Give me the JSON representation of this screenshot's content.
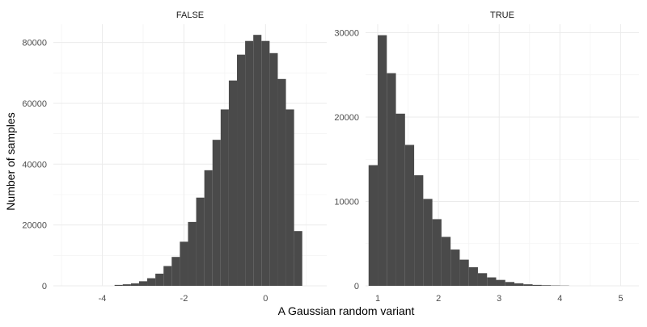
{
  "chart_data": {
    "type": "bar",
    "xlabel": "A Gaussian random variant",
    "ylabel": "Number of samples",
    "grid": true,
    "bar_color": "#4a4a4a",
    "grid_color": "#ebebeb",
    "panels": [
      {
        "strip_label": "FALSE",
        "xlim": [
          -5.2,
          1.5
        ],
        "ylim": [
          0,
          86000
        ],
        "x_ticks": [
          -4,
          -2,
          0
        ],
        "x_tick_labels": [
          "-4",
          "-2",
          "0"
        ],
        "y_ticks": [
          0,
          20000,
          40000,
          60000,
          80000
        ],
        "y_tick_labels": [
          "0",
          "20000",
          "40000",
          "60000",
          "80000"
        ],
        "bin_width": 0.2,
        "bins": [
          {
            "x": -3.6,
            "count": 300
          },
          {
            "x": -3.4,
            "count": 500
          },
          {
            "x": -3.2,
            "count": 800
          },
          {
            "x": -3.0,
            "count": 1500
          },
          {
            "x": -2.8,
            "count": 2500
          },
          {
            "x": -2.6,
            "count": 4000
          },
          {
            "x": -2.4,
            "count": 6500
          },
          {
            "x": -2.2,
            "count": 9500
          },
          {
            "x": -2.0,
            "count": 14500
          },
          {
            "x": -1.8,
            "count": 21000
          },
          {
            "x": -1.6,
            "count": 29000
          },
          {
            "x": -1.4,
            "count": 38000
          },
          {
            "x": -1.2,
            "count": 48000
          },
          {
            "x": -1.0,
            "count": 58000
          },
          {
            "x": -0.8,
            "count": 67500
          },
          {
            "x": -0.6,
            "count": 76000
          },
          {
            "x": -0.4,
            "count": 80500
          },
          {
            "x": -0.2,
            "count": 82500
          },
          {
            "x": 0.0,
            "count": 80500
          },
          {
            "x": 0.2,
            "count": 76500
          },
          {
            "x": 0.4,
            "count": 68000
          },
          {
            "x": 0.6,
            "count": 58000
          },
          {
            "x": 0.8,
            "count": 18000
          }
        ]
      },
      {
        "strip_label": "TRUE",
        "xlim": [
          0.8,
          5.3
        ],
        "ylim": [
          0,
          31000
        ],
        "x_ticks": [
          1,
          2,
          3,
          4,
          5
        ],
        "x_tick_labels": [
          "1",
          "2",
          "3",
          "4",
          "5"
        ],
        "y_ticks": [
          0,
          10000,
          20000,
          30000
        ],
        "y_tick_labels": [
          "0",
          "10000",
          "20000",
          "30000"
        ],
        "bin_width": 0.15,
        "bins": [
          {
            "x": 0.925,
            "count": 14300
          },
          {
            "x": 1.075,
            "count": 29700
          },
          {
            "x": 1.225,
            "count": 25200
          },
          {
            "x": 1.375,
            "count": 20400
          },
          {
            "x": 1.525,
            "count": 16700
          },
          {
            "x": 1.675,
            "count": 13100
          },
          {
            "x": 1.825,
            "count": 10300
          },
          {
            "x": 1.975,
            "count": 7900
          },
          {
            "x": 2.125,
            "count": 5800
          },
          {
            "x": 2.275,
            "count": 4300
          },
          {
            "x": 2.425,
            "count": 3100
          },
          {
            "x": 2.575,
            "count": 2200
          },
          {
            "x": 2.725,
            "count": 1500
          },
          {
            "x": 2.875,
            "count": 1000
          },
          {
            "x": 3.025,
            "count": 700
          },
          {
            "x": 3.175,
            "count": 450
          },
          {
            "x": 3.325,
            "count": 300
          },
          {
            "x": 3.475,
            "count": 180
          },
          {
            "x": 3.625,
            "count": 110
          },
          {
            "x": 3.775,
            "count": 70
          },
          {
            "x": 3.925,
            "count": 40
          },
          {
            "x": 4.075,
            "count": 25
          }
        ]
      }
    ]
  }
}
